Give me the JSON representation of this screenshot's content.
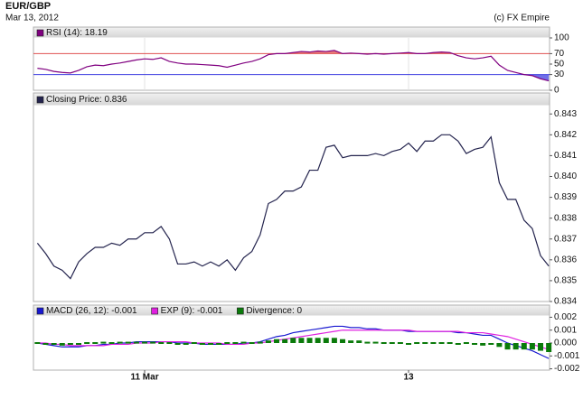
{
  "header": {
    "title": "EUR/GBP",
    "date": "Mar 13, 2012",
    "credit": "(c) FX Empire"
  },
  "chart_data": [
    {
      "type": "line",
      "series": [
        {
          "name": "RSI (14): 18.19",
          "color": "#800080",
          "values": [
            42,
            40,
            36,
            34,
            33,
            38,
            45,
            48,
            47,
            50,
            52,
            55,
            58,
            60,
            59,
            62,
            55,
            52,
            50,
            50,
            49,
            48,
            47,
            44,
            48,
            52,
            55,
            60,
            68,
            70,
            70,
            72,
            74,
            73,
            75,
            74,
            76,
            70,
            71,
            70,
            69,
            70,
            69,
            70,
            71,
            72,
            70,
            70,
            72,
            73,
            72,
            66,
            62,
            60,
            62,
            65,
            48,
            38,
            34,
            30,
            28,
            22,
            18
          ]
        }
      ],
      "ylim": [
        0,
        100
      ],
      "yticks": [
        100,
        70,
        50,
        30,
        0
      ],
      "bands": [
        {
          "value": 70,
          "color": "#e05050"
        },
        {
          "value": 30,
          "color": "#4040e0"
        }
      ]
    },
    {
      "type": "line",
      "series": [
        {
          "name": "Closing Price: 0.836",
          "color": "#24244e",
          "values": [
            0.8368,
            0.8363,
            0.8357,
            0.8355,
            0.8351,
            0.8359,
            0.8363,
            0.8366,
            0.8366,
            0.8368,
            0.8367,
            0.837,
            0.837,
            0.8373,
            0.8373,
            0.8376,
            0.837,
            0.8358,
            0.8358,
            0.8359,
            0.8357,
            0.8359,
            0.8357,
            0.836,
            0.8355,
            0.8361,
            0.8364,
            0.8372,
            0.8387,
            0.8389,
            0.8393,
            0.8393,
            0.8395,
            0.8403,
            0.8403,
            0.8414,
            0.8415,
            0.8409,
            0.841,
            0.841,
            0.841,
            0.8411,
            0.841,
            0.8412,
            0.8413,
            0.8416,
            0.8412,
            0.8417,
            0.8417,
            0.842,
            0.842,
            0.8417,
            0.8411,
            0.8413,
            0.8414,
            0.8419,
            0.8397,
            0.8389,
            0.8389,
            0.8379,
            0.8375,
            0.8362,
            0.8357
          ]
        }
      ],
      "ylim": [
        0.834,
        0.8434
      ],
      "yticks": [
        0.843,
        0.842,
        0.841,
        {
          "value": 0.84,
          "label": "0.840"
        },
        0.839,
        0.838,
        0.837,
        0.836,
        0.835,
        0.834
      ]
    },
    {
      "type": "line",
      "categories": [
        null,
        null,
        null,
        null,
        null,
        null,
        null,
        null,
        null,
        null,
        null,
        null,
        null,
        "11 Mar",
        null,
        null,
        null,
        null,
        null,
        null,
        null,
        null,
        null,
        null,
        null,
        null,
        null,
        null,
        null,
        null,
        null,
        null,
        null,
        null,
        null,
        null,
        null,
        null,
        null,
        null,
        null,
        null,
        null,
        null,
        null,
        "13",
        null,
        null,
        null,
        null,
        null,
        null,
        null,
        null,
        null,
        null,
        null,
        null,
        null,
        null,
        null,
        null,
        null
      ],
      "series": [
        {
          "name": "MACD (26, 12): -0.001",
          "color": "#1818d0",
          "values": [
            0,
            -0.0001,
            -0.0002,
            -0.0003,
            -0.0003,
            -0.0003,
            -0.0002,
            -0.0002,
            -0.0001,
            -0.0001,
            0,
            0,
            0.0001,
            0.0001,
            0.0001,
            0.0001,
            0.0001,
            0,
            0,
            0,
            -0.0001,
            -0.0001,
            -0.0001,
            -0.0001,
            -0.0001,
            0,
            0,
            0.0001,
            0.0003,
            0.0005,
            0.0006,
            0.0008,
            0.0009,
            0.001,
            0.0011,
            0.0012,
            0.0013,
            0.0013,
            0.0012,
            0.0012,
            0.0011,
            0.0011,
            0.001,
            0.001,
            0.001,
            0.0009,
            0.0009,
            0.0009,
            0.0009,
            0.0009,
            0.0009,
            0.0008,
            0.0008,
            0.0007,
            0.0006,
            0.0006,
            0.0003,
            0,
            -0.0002,
            -0.0004,
            -0.0006,
            -0.0009,
            -0.0012
          ]
        },
        {
          "name": "EXP (9): -0.001",
          "color": "#e020e0",
          "values": [
            0,
            0,
            -0.0001,
            -0.0001,
            -0.0002,
            -0.0002,
            -0.0002,
            -0.0002,
            -0.0002,
            -0.0001,
            -0.0001,
            -0.0001,
            0,
            0,
            0,
            0.0001,
            0.0001,
            0.0001,
            0.0001,
            0,
            0,
            0,
            0,
            -0.0001,
            -0.0001,
            -0.0001,
            0,
            0,
            0.0001,
            0.0002,
            0.0003,
            0.0004,
            0.0005,
            0.0006,
            0.0007,
            0.0008,
            0.0009,
            0.001,
            0.001,
            0.001,
            0.001,
            0.001,
            0.001,
            0.001,
            0.001,
            0.001,
            0.0009,
            0.0009,
            0.0009,
            0.0009,
            0.0009,
            0.0009,
            0.0008,
            0.0008,
            0.0008,
            0.0007,
            0.0006,
            0.0005,
            0.0003,
            0.0001,
            -0.0001,
            -0.0003,
            -0.0005
          ]
        },
        {
          "name": "Divergence: 0",
          "color": "#0a7a0a",
          "style": "bar",
          "values": [
            0,
            -0.0001,
            -0.0001,
            -0.0002,
            -0.0001,
            -0.0001,
            0,
            0,
            0.0001,
            0,
            0.0001,
            0.0001,
            0.0001,
            0.0001,
            0.0001,
            0,
            0,
            -0.0001,
            -0.0001,
            0,
            -0.0001,
            -0.0001,
            -0.0001,
            0,
            0,
            0.0001,
            0,
            0.0001,
            0.0002,
            0.0003,
            0.0003,
            0.0004,
            0.0004,
            0.0004,
            0.0004,
            0.0004,
            0.0004,
            0.0003,
            0.0002,
            0.0002,
            0.0001,
            0.0001,
            0,
            0,
            0,
            -0.0001,
            0,
            0,
            0,
            0,
            0,
            -0.0001,
            0,
            -0.0001,
            -0.0002,
            -0.0001,
            -0.0003,
            -0.0005,
            -0.0005,
            -0.0005,
            -0.0005,
            -0.0006,
            -0.0007
          ]
        }
      ],
      "ylim": [
        -0.0021,
        0.0021
      ],
      "yticks": [
        0.002,
        0.001,
        {
          "value": 0,
          "label": "0.000"
        },
        -0.001,
        -0.002
      ]
    }
  ]
}
